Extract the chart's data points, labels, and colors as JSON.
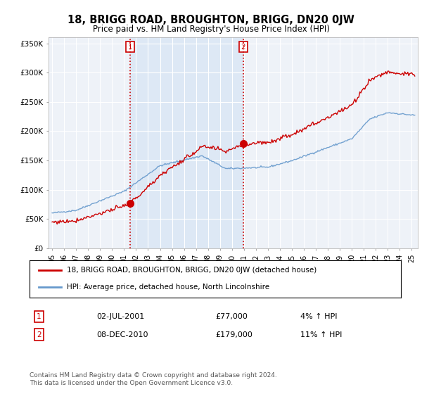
{
  "title": "18, BRIGG ROAD, BROUGHTON, BRIGG, DN20 0JW",
  "subtitle": "Price paid vs. HM Land Registry's House Price Index (HPI)",
  "ylabel_ticks": [
    "£0",
    "£50K",
    "£100K",
    "£150K",
    "£200K",
    "£250K",
    "£300K",
    "£350K"
  ],
  "ytick_values": [
    0,
    50000,
    100000,
    150000,
    200000,
    250000,
    300000,
    350000
  ],
  "ylim": [
    0,
    360000
  ],
  "xlim_start": 1994.7,
  "xlim_end": 2025.5,
  "property_color": "#cc0000",
  "hpi_color": "#6699cc",
  "hpi_fill_color": "#dde8f5",
  "vline_color": "#cc0000",
  "transaction1_x": 2001.5,
  "transaction1_y": 77000,
  "transaction1_label": "1",
  "transaction1_date": "02-JUL-2001",
  "transaction1_price": "£77,000",
  "transaction1_hpi": "4% ↑ HPI",
  "transaction2_x": 2010.93,
  "transaction2_y": 179000,
  "transaction2_label": "2",
  "transaction2_date": "08-DEC-2010",
  "transaction2_price": "£179,000",
  "transaction2_hpi": "11% ↑ HPI",
  "legend_prop_label": "18, BRIGG ROAD, BROUGHTON, BRIGG, DN20 0JW (detached house)",
  "legend_hpi_label": "HPI: Average price, detached house, North Lincolnshire",
  "footer": "Contains HM Land Registry data © Crown copyright and database right 2024.\nThis data is licensed under the Open Government Licence v3.0.",
  "background_color": "#ffffff",
  "plot_bg_color": "#eef2f8"
}
